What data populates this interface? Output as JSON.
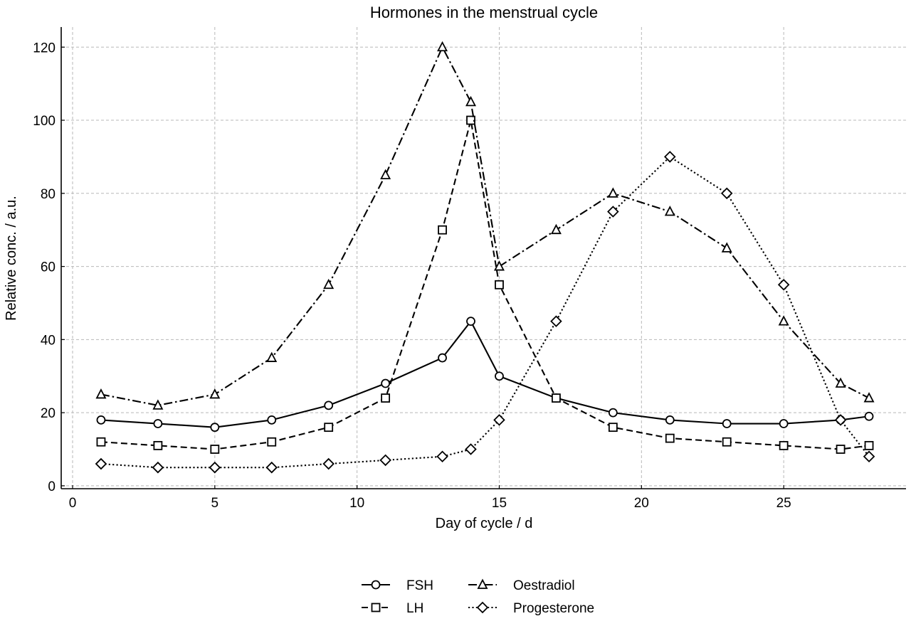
{
  "chart_data": {
    "type": "line",
    "title": "Hormones in the menstrual cycle",
    "xlabel": "Day of cycle / d",
    "ylabel": "Relative conc. / a.u.",
    "xlim": [
      -0.4,
      29.3
    ],
    "ylim": [
      -0.8,
      125.5
    ],
    "xticks": [
      0,
      5,
      10,
      15,
      20,
      25
    ],
    "yticks": [
      0,
      20,
      40,
      60,
      80,
      100,
      120
    ],
    "grid": true,
    "legend_position": "bottom-center",
    "series": [
      {
        "name": "FSH",
        "marker": "circle",
        "linestyle": "solid",
        "x": [
          1,
          3,
          5,
          7,
          9,
          11,
          13,
          14,
          15,
          17,
          19,
          21,
          23,
          25,
          27,
          28
        ],
        "y": [
          18,
          17,
          16,
          18,
          22,
          28,
          35,
          45,
          30,
          24,
          20,
          18,
          17,
          17,
          18,
          19
        ]
      },
      {
        "name": "LH",
        "marker": "square",
        "linestyle": "dashed",
        "x": [
          1,
          3,
          5,
          7,
          9,
          11,
          13,
          14,
          15,
          17,
          19,
          21,
          23,
          25,
          27,
          28
        ],
        "y": [
          12,
          11,
          10,
          12,
          16,
          24,
          70,
          100,
          55,
          24,
          16,
          13,
          12,
          11,
          10,
          11
        ]
      },
      {
        "name": "Oestradiol",
        "marker": "triangle",
        "linestyle": "dashdot",
        "x": [
          1,
          3,
          5,
          7,
          9,
          11,
          13,
          14,
          15,
          17,
          19,
          21,
          23,
          25,
          27,
          28
        ],
        "y": [
          25,
          22,
          25,
          35,
          55,
          85,
          120,
          105,
          60,
          70,
          80,
          75,
          65,
          45,
          28,
          24
        ]
      },
      {
        "name": "Progesterone",
        "marker": "diamond",
        "linestyle": "dotted",
        "x": [
          1,
          3,
          5,
          7,
          9,
          11,
          13,
          14,
          15,
          17,
          19,
          21,
          23,
          25,
          27,
          28
        ],
        "y": [
          6,
          5,
          5,
          5,
          6,
          7,
          8,
          10,
          18,
          45,
          75,
          90,
          80,
          55,
          18,
          8
        ]
      }
    ]
  }
}
